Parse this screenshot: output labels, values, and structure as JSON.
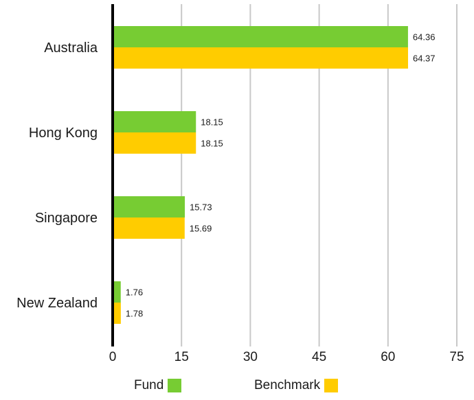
{
  "chart_data": {
    "type": "bar",
    "orientation": "horizontal",
    "categories": [
      "Australia",
      "Hong Kong",
      "Singapore",
      "New Zealand"
    ],
    "series": [
      {
        "name": "Fund",
        "values": [
          64.36,
          18.15,
          15.73,
          1.76
        ],
        "color": "#77cc33"
      },
      {
        "name": "Benchmark",
        "values": [
          64.37,
          18.15,
          15.69,
          1.78
        ],
        "color": "#ffcc00"
      }
    ],
    "xlim": [
      0,
      75
    ],
    "xticks": [
      0,
      15,
      30,
      45,
      60,
      75
    ],
    "grid": true,
    "legend_position": "bottom",
    "title": "",
    "xlabel": "",
    "ylabel": ""
  },
  "legend": {
    "items": [
      {
        "label": "Fund",
        "color": "#77cc33"
      },
      {
        "label": "Benchmark",
        "color": "#ffcc00"
      }
    ]
  }
}
